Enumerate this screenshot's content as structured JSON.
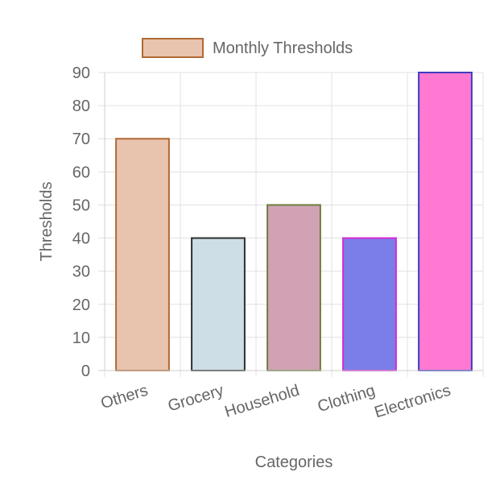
{
  "chart_data": {
    "type": "bar",
    "legend": {
      "label": "Monthly Thresholds",
      "placement": "top-center",
      "fill": "#e8c3ad",
      "border": "#b06a36"
    },
    "categories": [
      "Others",
      "Grocery",
      "Household",
      "Clothing",
      "Electronics"
    ],
    "series": [
      {
        "name": "Monthly Thresholds",
        "values": [
          70,
          40,
          50,
          40,
          90
        ]
      }
    ],
    "bar_fill_colors": [
      "#e8c3ad",
      "#cddee6",
      "#d1a2b4",
      "#7b7ee8",
      "#ff78d2"
    ],
    "bar_border_colors": [
      "#b06a36",
      "#2e2e2e",
      "#6f7d3d",
      "#d52ad4",
      "#3d3dc0"
    ],
    "xlabel": "Categories",
    "ylabel": "Thresholds",
    "ylim": [
      0,
      90
    ],
    "yticks": [
      0,
      10,
      20,
      30,
      40,
      50,
      60,
      70,
      80,
      90
    ],
    "grid": true
  }
}
